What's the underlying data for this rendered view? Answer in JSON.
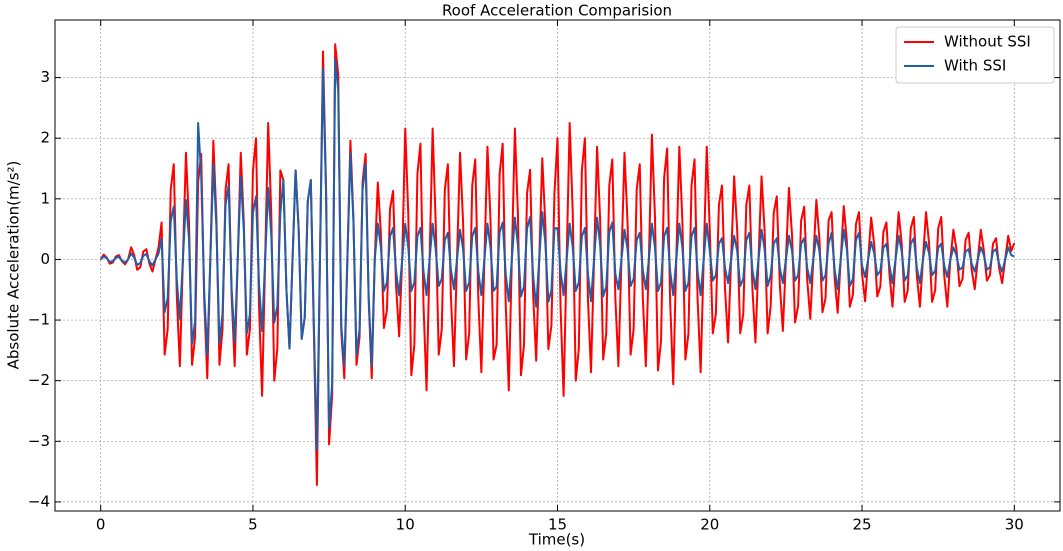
{
  "chart_data": {
    "type": "line",
    "title": "Roof Acceleration Comparision",
    "x_label": "Time(s)",
    "y_label": "Absolute Acceleration(m/s²)",
    "xlim": [
      -1.5,
      31.5
    ],
    "ylim": [
      -4.15,
      3.95
    ],
    "xticks": [
      0,
      5,
      10,
      15,
      20,
      25,
      30
    ],
    "yticks": [
      {
        "value": -4,
        "label": "−4"
      },
      {
        "value": -3,
        "label": "−3"
      },
      {
        "value": -2,
        "label": "−2"
      },
      {
        "value": -1,
        "label": "−1"
      },
      0,
      1,
      2,
      3
    ],
    "grid": true,
    "legend": "upper right",
    "x": [
      0,
      0.1,
      0.2,
      0.3,
      0.4,
      0.5,
      0.6,
      0.7,
      0.8,
      0.9,
      1,
      1.1,
      1.2,
      1.3,
      1.4,
      1.5,
      1.6,
      1.7,
      1.8,
      1.9,
      2,
      2.1,
      2.2,
      2.3,
      2.4,
      2.5,
      2.6,
      2.7,
      2.8,
      2.9,
      3,
      3.1,
      3.2,
      3.3,
      3.4,
      3.5,
      3.6,
      3.7,
      3.8,
      3.9,
      4,
      4.1,
      4.2,
      4.3,
      4.4,
      4.5,
      4.6,
      4.7,
      4.8,
      4.9,
      5,
      5.1,
      5.2,
      5.3,
      5.4,
      5.5,
      5.6,
      5.7,
      5.8,
      5.9,
      6,
      6.1,
      6.2,
      6.3,
      6.4,
      6.5,
      6.6,
      6.7,
      6.8,
      6.9,
      7,
      7.1,
      7.2,
      7.3,
      7.4,
      7.5,
      7.6,
      7.7,
      7.8,
      7.9,
      8,
      8.1,
      8.2,
      8.3,
      8.4,
      8.5,
      8.6,
      8.7,
      8.8,
      8.9,
      9,
      9.1,
      9.2,
      9.3,
      9.4,
      9.5,
      9.6,
      9.7,
      9.8,
      9.9,
      10,
      10.1,
      10.2,
      10.3,
      10.4,
      10.5,
      10.6,
      10.7,
      10.8,
      10.9,
      11,
      11.1,
      11.2,
      11.3,
      11.4,
      11.5,
      11.6,
      11.7,
      11.8,
      11.9,
      12,
      12.1,
      12.2,
      12.3,
      12.4,
      12.5,
      12.6,
      12.7,
      12.8,
      12.9,
      13,
      13.1,
      13.2,
      13.3,
      13.4,
      13.5,
      13.6,
      13.7,
      13.8,
      13.9,
      14,
      14.1,
      14.2,
      14.3,
      14.4,
      14.5,
      14.6,
      14.7,
      14.8,
      14.9,
      15,
      15.1,
      15.2,
      15.3,
      15.4,
      15.5,
      15.6,
      15.7,
      15.8,
      15.9,
      16,
      16.1,
      16.2,
      16.3,
      16.4,
      16.5,
      16.6,
      16.7,
      16.8,
      16.9,
      17,
      17.1,
      17.2,
      17.3,
      17.4,
      17.5,
      17.6,
      17.7,
      17.8,
      17.9,
      18,
      18.1,
      18.2,
      18.3,
      18.4,
      18.5,
      18.6,
      18.7,
      18.8,
      18.9,
      19,
      19.1,
      19.2,
      19.3,
      19.4,
      19.5,
      19.6,
      19.7,
      19.8,
      19.9,
      20,
      20.1,
      20.2,
      20.3,
      20.4,
      20.5,
      20.6,
      20.7,
      20.8,
      20.9,
      21,
      21.1,
      21.2,
      21.3,
      21.4,
      21.5,
      21.6,
      21.7,
      21.8,
      21.9,
      22,
      22.1,
      22.2,
      22.3,
      22.4,
      22.5,
      22.6,
      22.7,
      22.8,
      22.9,
      23,
      23.1,
      23.2,
      23.3,
      23.4,
      23.5,
      23.6,
      23.7,
      23.8,
      23.9,
      24,
      24.1,
      24.2,
      24.3,
      24.4,
      24.5,
      24.6,
      24.7,
      24.8,
      24.9,
      25,
      25.1,
      25.2,
      25.3,
      25.4,
      25.5,
      25.6,
      25.7,
      25.8,
      25.9,
      26,
      26.1,
      26.2,
      26.3,
      26.4,
      26.5,
      26.6,
      26.7,
      26.8,
      26.9,
      27,
      27.1,
      27.2,
      27.3,
      27.4,
      27.5,
      27.6,
      27.7,
      27.8,
      27.9,
      28,
      28.1,
      28.2,
      28.3,
      28.4,
      28.5,
      28.6,
      28.7,
      28.8,
      28.9,
      29,
      29.1,
      29.2,
      29.3,
      29.4,
      29.5,
      29.6,
      29.7,
      29.8,
      29.9,
      30
    ],
    "series": [
      {
        "name": "Without SSI",
        "color": "#ff0000",
        "values": [
          0,
          0.08,
          0.03,
          -0.07,
          -0.05,
          0.05,
          0.07,
          -0.03,
          -0.08,
          0,
          0.2,
          0.07,
          -0.17,
          -0.13,
          0.13,
          0.17,
          -0.07,
          -0.2,
          0,
          0.2,
          0.61,
          -1.57,
          -1.15,
          1.15,
          1.57,
          -0.61,
          -1.76,
          0,
          1.76,
          0.61,
          -1.74,
          -1.28,
          1.28,
          1.74,
          -0.68,
          -1.96,
          0,
          1.96,
          0.68,
          -1.74,
          -1.15,
          1.15,
          1.57,
          -0.61,
          -1.76,
          0,
          1.76,
          0.61,
          -1.57,
          -1.15,
          1.47,
          2,
          -0.78,
          -2.25,
          0,
          2.25,
          0.78,
          -2,
          -1.47,
          1.47,
          1.31,
          -0.51,
          -1.47,
          0,
          1.47,
          0.51,
          -1.31,
          -0.96,
          0.96,
          1.31,
          -1.19,
          -3.72,
          0,
          3.43,
          1.19,
          -3.05,
          -2.24,
          3.55,
          3.05,
          -1.19,
          -1.96,
          0,
          1.96,
          0.68,
          -1.74,
          -1.28,
          1.28,
          1.74,
          -0.68,
          -1.96,
          0,
          1.27,
          0.44,
          -1.13,
          -0.83,
          0.83,
          1.13,
          -0.44,
          -1.27,
          0,
          2.16,
          0.75,
          -1.91,
          -1.41,
          1.41,
          1.91,
          -0.75,
          -2.16,
          0,
          2.16,
          0.61,
          -1.57,
          -1.15,
          1.15,
          1.57,
          -0.61,
          -1.76,
          0,
          1.76,
          0.61,
          -1.65,
          -1.22,
          1.22,
          1.65,
          -0.65,
          -1.86,
          0,
          1.86,
          0.65,
          -1.65,
          -1.41,
          1.41,
          1.91,
          -0.75,
          -2.16,
          0,
          2.16,
          0.75,
          -1.91,
          -1.41,
          1.09,
          1.48,
          -0.58,
          -1.67,
          0,
          1.67,
          0.58,
          -1.48,
          -1.09,
          1.09,
          2,
          -0.78,
          -2.25,
          0,
          2.25,
          0.78,
          -2,
          -1.47,
          1.47,
          2,
          -0.65,
          -1.86,
          0,
          1.86,
          0.65,
          -1.65,
          -1.22,
          1.22,
          1.65,
          -0.65,
          -1.76,
          0,
          1.76,
          0.61,
          -1.57,
          -1.15,
          1.15,
          1.57,
          -0.61,
          -1.76,
          0,
          2.06,
          0.71,
          -1.83,
          -1.34,
          1.34,
          1.83,
          -0.71,
          -2.06,
          0,
          1.86,
          0.65,
          -1.65,
          -1.22,
          1.22,
          1.65,
          -0.65,
          -1.86,
          0,
          1.86,
          0.48,
          -1.22,
          -0.9,
          0.9,
          1.22,
          -0.48,
          -1.37,
          0,
          1.37,
          0.48,
          -1.22,
          -0.9,
          0.9,
          1.22,
          -0.48,
          -1.37,
          0,
          1.37,
          0.48,
          -1.22,
          -0.77,
          0.77,
          1.04,
          -0.41,
          -1.18,
          0,
          1.18,
          0.41,
          -1.04,
          -0.77,
          0.64,
          0.87,
          -0.34,
          -0.98,
          0,
          0.98,
          0.34,
          -0.87,
          -0.64,
          0.64,
          0.78,
          -0.31,
          -0.88,
          0,
          0.88,
          0.31,
          -0.78,
          -0.58,
          0.58,
          0.78,
          -0.24,
          -0.69,
          0,
          0.69,
          0.24,
          -0.61,
          -0.45,
          0.45,
          0.61,
          -0.24,
          -0.78,
          0,
          0.78,
          0.27,
          -0.7,
          -0.51,
          0.51,
          0.7,
          -0.27,
          -0.78,
          0,
          0.78,
          0.27,
          -0.7,
          -0.51,
          0.51,
          0.7,
          -0.27,
          -0.78,
          0,
          0.49,
          0.17,
          -0.44,
          -0.32,
          0.32,
          0.44,
          -0.17,
          -0.49,
          0,
          0.49,
          0.14,
          -0.35,
          -0.26,
          0.26,
          0.35,
          -0.14,
          -0.39,
          0,
          0.39,
          0.14,
          0.27
        ]
      },
      {
        "name": "With SSI",
        "color": "#1f5fa8",
        "values": [
          0,
          0.05,
          0.02,
          -0.04,
          -0.03,
          0.03,
          0.04,
          -0.02,
          -0.05,
          0,
          0.1,
          0.03,
          -0.09,
          -0.06,
          0.06,
          0.09,
          -0.03,
          -0.1,
          0,
          0.1,
          0.34,
          -0.87,
          -0.64,
          0.64,
          0.87,
          -0.34,
          -0.98,
          0,
          0.98,
          0.34,
          -1.39,
          -1.02,
          2.25,
          1.39,
          -0.54,
          -1.57,
          0,
          1.57,
          0.54,
          -1.39,
          -0.9,
          0.9,
          1.22,
          -0.48,
          -1.37,
          0,
          1.37,
          0.48,
          -1.22,
          -0.9,
          0.77,
          1.04,
          -0.41,
          -1.18,
          0,
          1.18,
          0.41,
          -1.04,
          -0.77,
          0.77,
          1.31,
          -0.51,
          -1.47,
          0,
          1.47,
          0.51,
          -1.31,
          -0.96,
          0.96,
          1.31,
          -1.09,
          -3.14,
          0,
          3.14,
          1.09,
          -2.78,
          -2.05,
          3.3,
          2.78,
          -1.09,
          -1.76,
          0,
          1.76,
          0.61,
          -1.57,
          -1.15,
          1.15,
          1.57,
          -0.61,
          -1.76,
          0,
          0.59,
          0.2,
          -0.52,
          -0.38,
          0.38,
          0.52,
          -0.2,
          -0.59,
          0,
          0.59,
          0.2,
          -0.52,
          -0.38,
          0.38,
          0.52,
          -0.2,
          -0.59,
          0,
          0.59,
          0.17,
          -0.44,
          -0.32,
          0.32,
          0.44,
          -0.17,
          -0.49,
          0,
          0.49,
          0.17,
          -0.52,
          -0.38,
          0.38,
          0.52,
          -0.2,
          -0.59,
          0,
          0.59,
          0.2,
          -0.52,
          -0.45,
          0.45,
          0.61,
          -0.24,
          -0.69,
          0,
          0.69,
          0.24,
          -0.61,
          -0.45,
          0.51,
          0.7,
          -0.27,
          -0.78,
          0,
          0.78,
          0.27,
          -0.7,
          -0.51,
          0.51,
          0.52,
          -0.2,
          -0.59,
          0,
          0.59,
          0.2,
          -0.52,
          -0.38,
          0.38,
          0.52,
          -0.24,
          -0.69,
          0,
          0.69,
          0.24,
          -0.61,
          -0.45,
          0.45,
          0.61,
          -0.24,
          -0.49,
          0,
          0.49,
          0.17,
          -0.44,
          -0.32,
          0.32,
          0.44,
          -0.17,
          -0.49,
          0,
          0.59,
          0.2,
          -0.52,
          -0.38,
          0.38,
          0.52,
          -0.2,
          -0.59,
          0,
          0.59,
          0.2,
          -0.52,
          -0.38,
          0.38,
          0.52,
          -0.2,
          -0.59,
          0,
          0.59,
          0.14,
          -0.35,
          -0.26,
          0.26,
          0.35,
          -0.14,
          -0.39,
          0,
          0.39,
          0.14,
          -0.44,
          -0.32,
          0.32,
          0.44,
          -0.17,
          -0.49,
          0,
          0.49,
          0.17,
          -0.44,
          -0.26,
          0.26,
          0.35,
          -0.14,
          -0.39,
          0,
          0.39,
          0.14,
          -0.35,
          -0.26,
          0.26,
          0.35,
          -0.14,
          -0.39,
          0,
          0.39,
          0.14,
          -0.35,
          -0.26,
          0.26,
          0.44,
          -0.17,
          -0.49,
          0,
          0.49,
          0.17,
          -0.44,
          -0.32,
          0.32,
          0.44,
          -0.1,
          -0.29,
          0,
          0.29,
          0.1,
          -0.26,
          -0.19,
          0.19,
          0.26,
          -0.1,
          -0.39,
          0,
          0.39,
          0.14,
          -0.35,
          -0.26,
          0.26,
          0.35,
          -0.14,
          -0.39,
          0,
          0.29,
          0.1,
          -0.26,
          -0.19,
          0.19,
          0.26,
          -0.1,
          -0.29,
          0,
          0.2,
          0.07,
          -0.17,
          -0.13,
          0.13,
          0.17,
          -0.07,
          -0.2,
          0,
          0.2,
          0.07,
          -0.17,
          -0.13,
          0.13,
          0.17,
          -0.07,
          -0.2,
          0,
          0.2,
          0.07,
          0.05
        ]
      }
    ]
  }
}
